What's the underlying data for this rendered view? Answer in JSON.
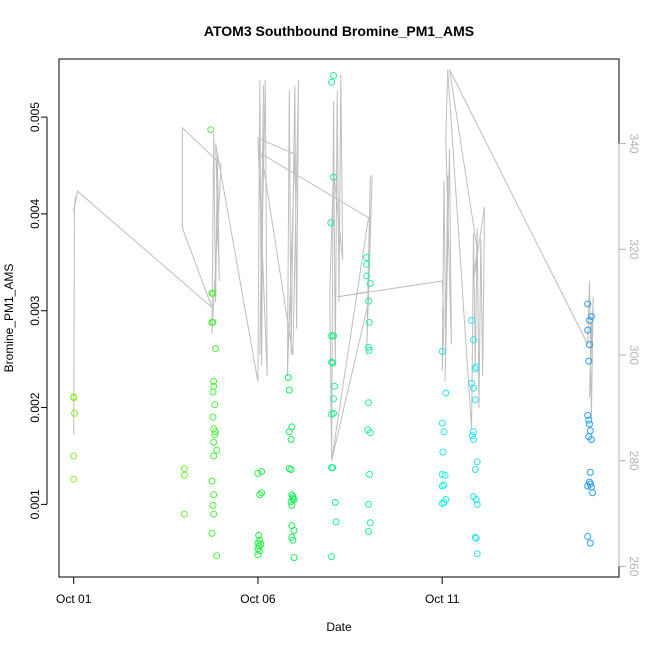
{
  "chart_data": {
    "type": "scatter",
    "title": "ATOM3 Southbound Bromine_PM1_AMS",
    "xlabel": "Date",
    "ylabel": "Bromine_PM1_AMS",
    "x_ticks": [
      "Oct 01",
      "Oct 06",
      "Oct 11"
    ],
    "x_tick_days": [
      1,
      6,
      11
    ],
    "xlim": [
      0.6,
      15.8
    ],
    "ylim": [
      0.00025,
      0.0056
    ],
    "y_ticks": [
      "0.001",
      "0.002",
      "0.003",
      "0.004",
      "0.005"
    ],
    "y_tick_values": [
      0.001,
      0.002,
      0.003,
      0.004,
      0.005
    ],
    "y2lim": [
      258,
      356
    ],
    "y2_ticks": [
      "260",
      "280",
      "300",
      "320",
      "340"
    ],
    "y2_tick_values": [
      260,
      280,
      300,
      320,
      340
    ],
    "grid": false,
    "legend": "none",
    "colors": {
      "line": "#bebebe",
      "right_axis": "#b3b3b3",
      "axis": "#000000"
    },
    "series": [
      {
        "color": "#8cf22a",
        "points": [
          [
            1.0,
            0.0021
          ],
          [
            1.0,
            0.00211
          ],
          [
            1.02,
            0.00194
          ],
          [
            1.0,
            0.0015
          ],
          [
            1.0,
            0.00126
          ]
        ]
      },
      {
        "color": "#6ef530",
        "points": [
          [
            4.0,
            0.00137
          ],
          [
            4.0,
            0.0013
          ],
          [
            4.0,
            0.0009
          ]
        ]
      },
      {
        "color": "#4cf23a",
        "points": [
          [
            4.72,
            0.00487
          ],
          [
            4.75,
            0.00318
          ],
          [
            4.78,
            0.00318
          ],
          [
            4.75,
            0.00288
          ],
          [
            4.78,
            0.00288
          ],
          [
            4.85,
            0.00261
          ],
          [
            4.8,
            0.00227
          ],
          [
            4.8,
            0.00222
          ],
          [
            4.78,
            0.00216
          ],
          [
            4.83,
            0.00203
          ],
          [
            4.78,
            0.0019
          ],
          [
            4.8,
            0.00178
          ],
          [
            4.85,
            0.00175
          ],
          [
            4.83,
            0.00172
          ],
          [
            4.8,
            0.00164
          ],
          [
            4.88,
            0.00156
          ],
          [
            4.8,
            0.0015
          ],
          [
            4.75,
            0.00124
          ],
          [
            4.8,
            0.0011
          ],
          [
            4.78,
            0.00099
          ],
          [
            4.8,
            0.0009
          ],
          [
            4.75,
            0.0007
          ],
          [
            4.88,
            0.00047
          ]
        ]
      },
      {
        "color": "#22f04a",
        "points": [
          [
            6.0,
            0.00132
          ],
          [
            6.1,
            0.00134
          ],
          [
            6.05,
            0.0011
          ],
          [
            6.1,
            0.00112
          ],
          [
            6.02,
            0.00068
          ],
          [
            6.05,
            0.00063
          ],
          [
            6.0,
            0.0006
          ],
          [
            6.03,
            0.00057
          ],
          [
            6.0,
            0.00054
          ],
          [
            6.08,
            0.00059
          ],
          [
            6.05,
            0.00052
          ],
          [
            6.0,
            0.00048
          ]
        ]
      },
      {
        "color": "#18ef5b",
        "points": [
          [
            6.82,
            0.00231
          ],
          [
            6.85,
            0.00218
          ],
          [
            6.92,
            0.0018
          ],
          [
            6.85,
            0.00175
          ],
          [
            6.9,
            0.00167
          ],
          [
            6.85,
            0.00137
          ],
          [
            6.9,
            0.00136
          ],
          [
            6.92,
            0.0011
          ],
          [
            6.95,
            0.00106
          ],
          [
            6.9,
            0.00103
          ],
          [
            6.95,
            0.00108
          ],
          [
            6.98,
            0.00105
          ],
          [
            6.92,
            0.00099
          ],
          [
            6.92,
            0.00078
          ],
          [
            6.98,
            0.00073
          ],
          [
            6.92,
            0.00066
          ],
          [
            6.95,
            0.00063
          ],
          [
            6.98,
            0.00045
          ]
        ]
      },
      {
        "color": "#1cf08f",
        "points": [
          [
            8.05,
            0.00543
          ],
          [
            8.0,
            0.00536
          ],
          [
            8.05,
            0.00438
          ],
          [
            7.98,
            0.00391
          ],
          [
            8.0,
            0.00274
          ],
          [
            8.05,
            0.00274
          ],
          [
            8.0,
            0.00247
          ],
          [
            8.03,
            0.00246
          ],
          [
            8.08,
            0.00222
          ],
          [
            8.05,
            0.00209
          ],
          [
            8.0,
            0.00193
          ],
          [
            8.05,
            0.00194
          ],
          [
            8.0,
            0.00138
          ],
          [
            8.03,
            0.00138
          ],
          [
            8.1,
            0.00102
          ],
          [
            8.12,
            0.00082
          ],
          [
            8.0,
            0.00046
          ]
        ]
      },
      {
        "color": "#22edb4",
        "points": [
          [
            8.95,
            0.00355
          ],
          [
            8.95,
            0.00348
          ],
          [
            8.95,
            0.00336
          ],
          [
            9.05,
            0.00328
          ],
          [
            9.0,
            0.0031
          ],
          [
            9.02,
            0.00288
          ],
          [
            9.0,
            0.00262
          ],
          [
            9.02,
            0.00259
          ],
          [
            9.0,
            0.00205
          ],
          [
            8.98,
            0.00177
          ],
          [
            9.05,
            0.00174
          ],
          [
            9.03,
            0.00131
          ],
          [
            9.0,
            0.001
          ],
          [
            9.05,
            0.00081
          ],
          [
            9.0,
            0.00072
          ]
        ]
      },
      {
        "color": "#1eece6",
        "points": [
          [
            11.0,
            0.00258
          ],
          [
            11.1,
            0.00215
          ],
          [
            11.0,
            0.00184
          ],
          [
            11.05,
            0.00175
          ],
          [
            11.02,
            0.00154
          ],
          [
            11.0,
            0.00131
          ],
          [
            11.08,
            0.0013
          ],
          [
            11.05,
            0.0012
          ],
          [
            11.0,
            0.00119
          ],
          [
            11.1,
            0.00105
          ],
          [
            11.05,
            0.00102
          ],
          [
            11.0,
            0.00101
          ]
        ]
      },
      {
        "color": "#2ae1f5",
        "points": [
          [
            11.8,
            0.0029
          ],
          [
            11.85,
            0.0027
          ],
          [
            11.92,
            0.00242
          ],
          [
            11.9,
            0.0024
          ],
          [
            11.8,
            0.00225
          ],
          [
            11.85,
            0.0022
          ],
          [
            11.9,
            0.00208
          ],
          [
            11.85,
            0.00175
          ],
          [
            11.82,
            0.00171
          ],
          [
            11.85,
            0.00167
          ],
          [
            11.95,
            0.00144
          ],
          [
            11.9,
            0.00136
          ],
          [
            11.85,
            0.00108
          ],
          [
            11.92,
            0.00105
          ],
          [
            11.95,
            0.001
          ],
          [
            11.9,
            0.00066
          ],
          [
            11.92,
            0.00065
          ],
          [
            11.95,
            0.00049
          ]
        ]
      },
      {
        "color": "#2a9ff0",
        "points": [
          [
            14.95,
            0.00307
          ],
          [
            15.05,
            0.00294
          ],
          [
            15.0,
            0.0029
          ],
          [
            14.95,
            0.0028
          ],
          [
            15.0,
            0.00265
          ],
          [
            14.98,
            0.00248
          ],
          [
            14.95,
            0.00192
          ],
          [
            14.98,
            0.00187
          ],
          [
            15.0,
            0.00183
          ],
          [
            15.02,
            0.00176
          ],
          [
            14.98,
            0.0017
          ],
          [
            15.05,
            0.00167
          ],
          [
            15.02,
            0.00133
          ],
          [
            15.0,
            0.00123
          ],
          [
            15.02,
            0.00121
          ],
          [
            14.95,
            0.00119
          ],
          [
            15.05,
            0.00118
          ],
          [
            15.08,
            0.00112
          ],
          [
            14.95,
            0.00067
          ],
          [
            15.02,
            0.0006
          ]
        ]
      }
    ],
    "line_series": [
      [
        1.0,
        285
      ],
      [
        1.02,
        328
      ],
      [
        1.05,
        330
      ],
      [
        1.0,
        327
      ],
      [
        1.1,
        331
      ],
      [
        4.75,
        309
      ],
      [
        3.95,
        324
      ],
      [
        3.95,
        343
      ],
      [
        5.0,
        336
      ],
      [
        4.75,
        304
      ],
      [
        4.8,
        342
      ],
      [
        4.85,
        310
      ],
      [
        4.9,
        338
      ],
      [
        4.95,
        314
      ],
      [
        4.85,
        340
      ],
      [
        6.0,
        295
      ],
      [
        6.05,
        352
      ],
      [
        6.1,
        298
      ],
      [
        6.15,
        351
      ],
      [
        6.05,
        300
      ],
      [
        6.2,
        352
      ],
      [
        6.25,
        296
      ],
      [
        6.0,
        341
      ],
      [
        7.0,
        338
      ],
      [
        6.8,
        296
      ],
      [
        6.85,
        350
      ],
      [
        6.9,
        300
      ],
      [
        7.0,
        351
      ],
      [
        7.05,
        305
      ],
      [
        7.1,
        352
      ],
      [
        6.95,
        300
      ],
      [
        6.1,
        338
      ],
      [
        9.0,
        326
      ],
      [
        8.0,
        280
      ],
      [
        8.05,
        348
      ],
      [
        8.1,
        298
      ],
      [
        8.15,
        350
      ],
      [
        8.2,
        310
      ],
      [
        8.25,
        353
      ],
      [
        8.3,
        318
      ],
      [
        8.05,
        335
      ],
      [
        7.95,
        312
      ],
      [
        8.0,
        280
      ],
      [
        9.0,
        310
      ],
      [
        9.05,
        334
      ],
      [
        8.95,
        300
      ],
      [
        9.1,
        334
      ],
      [
        9.0,
        312
      ],
      [
        8.15,
        311
      ],
      [
        11.0,
        314
      ],
      [
        11.05,
        306
      ],
      [
        11.0,
        297
      ],
      [
        11.05,
        333
      ],
      [
        11.1,
        300
      ],
      [
        11.15,
        334
      ],
      [
        11.08,
        295
      ],
      [
        11.2,
        339
      ],
      [
        11.25,
        302
      ],
      [
        11.1,
        341
      ],
      [
        11.15,
        354
      ],
      [
        11.8,
        286
      ],
      [
        11.85,
        323
      ],
      [
        11.9,
        298
      ],
      [
        11.95,
        324
      ],
      [
        12.0,
        290
      ],
      [
        12.05,
        322
      ],
      [
        12.1,
        296
      ],
      [
        12.15,
        328
      ],
      [
        11.85,
        314
      ],
      [
        11.95,
        320
      ],
      [
        11.2,
        354
      ],
      [
        14.95,
        302
      ],
      [
        15.0,
        314
      ],
      [
        15.05,
        288
      ],
      [
        15.1,
        311
      ],
      [
        15.0,
        292
      ],
      [
        15.05,
        306
      ]
    ]
  }
}
